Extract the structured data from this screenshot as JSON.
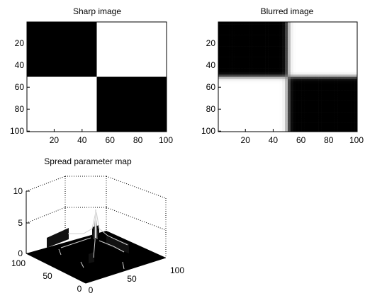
{
  "chart_data": [
    {
      "type": "heatmap",
      "title": "Sharp image",
      "colormap": "gray",
      "x_ticks": [
        20,
        40,
        60,
        80,
        100
      ],
      "y_ticks": [
        20,
        40,
        60,
        80,
        100
      ],
      "xlim": [
        0.5,
        100.5
      ],
      "ylim": [
        0.5,
        100.5
      ],
      "y_reversed": true,
      "rows": 100,
      "cols": 100,
      "blocks": [
        {
          "rows": [
            1,
            50
          ],
          "cols": [
            1,
            50
          ],
          "value": 0
        },
        {
          "rows": [
            1,
            50
          ],
          "cols": [
            51,
            100
          ],
          "value": 1
        },
        {
          "rows": [
            51,
            100
          ],
          "cols": [
            1,
            50
          ],
          "value": 1
        },
        {
          "rows": [
            51,
            100
          ],
          "cols": [
            51,
            100
          ],
          "value": 0
        }
      ]
    },
    {
      "type": "heatmap",
      "title": "Blurred image",
      "colormap": "gray",
      "x_ticks": [
        20,
        40,
        60,
        80,
        100
      ],
      "y_ticks": [
        20,
        40,
        60,
        80,
        100
      ],
      "xlim": [
        0.5,
        100.5
      ],
      "ylim": [
        0.5,
        100.5
      ],
      "y_reversed": true,
      "rows": 100,
      "cols": 100,
      "blur_center": 50.5,
      "blur_width": 2
    },
    {
      "type": "surface",
      "title": "Spread parameter map",
      "z_ticks": [
        0,
        5,
        10
      ],
      "x_ticks": [
        0,
        50,
        100
      ],
      "y_ticks": [
        0,
        50,
        100
      ],
      "zlim": [
        0,
        10
      ],
      "xlim": [
        0,
        100
      ],
      "ylim": [
        0,
        100
      ],
      "peak": {
        "x": 50,
        "y": 50,
        "z": 6.5
      },
      "ridge_height": 2,
      "ridge_position": 50
    }
  ]
}
